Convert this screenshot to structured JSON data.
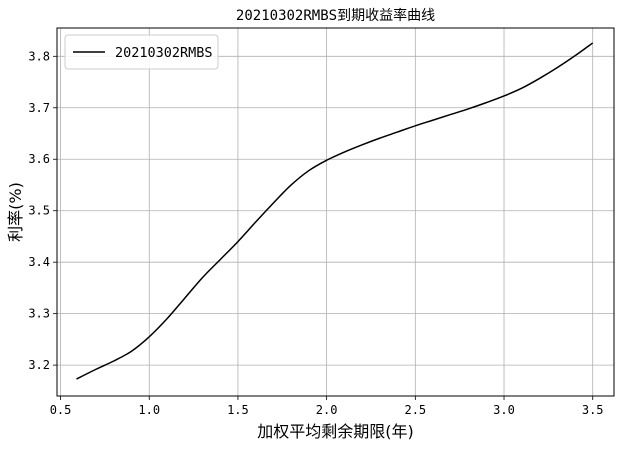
{
  "chart_data": {
    "type": "line",
    "title": "20210302RMBS到期收益率曲线",
    "xlabel": "加权平均剩余期限(年)",
    "ylabel": "利率(%)",
    "xlim": [
      0.48,
      3.62
    ],
    "ylim": [
      3.14,
      3.855
    ],
    "xticks": [
      0.5,
      1.0,
      1.5,
      2.0,
      2.5,
      3.0,
      3.5
    ],
    "xtick_labels": [
      "0.5",
      "1.0",
      "1.5",
      "2.0",
      "2.5",
      "3.0",
      "3.5"
    ],
    "yticks": [
      3.2,
      3.3,
      3.4,
      3.5,
      3.6,
      3.7,
      3.8
    ],
    "ytick_labels": [
      "3.2",
      "3.3",
      "3.4",
      "3.5",
      "3.6",
      "3.7",
      "3.8"
    ],
    "grid": true,
    "legend_position": "top-left",
    "series": [
      {
        "name": "20210302RMBS",
        "color": "#000000",
        "x": [
          0.59,
          0.7,
          0.8,
          0.9,
          1.0,
          1.1,
          1.2,
          1.3,
          1.4,
          1.5,
          1.6,
          1.7,
          1.8,
          1.9,
          2.0,
          2.1,
          2.2,
          2.3,
          2.4,
          2.5,
          2.6,
          2.7,
          2.8,
          2.9,
          3.0,
          3.1,
          3.2,
          3.3,
          3.4,
          3.5
        ],
        "y": [
          3.173,
          3.192,
          3.208,
          3.227,
          3.255,
          3.29,
          3.33,
          3.37,
          3.405,
          3.44,
          3.478,
          3.515,
          3.55,
          3.578,
          3.598,
          3.614,
          3.628,
          3.641,
          3.653,
          3.665,
          3.676,
          3.687,
          3.698,
          3.71,
          3.723,
          3.738,
          3.757,
          3.778,
          3.801,
          3.826
        ]
      }
    ]
  }
}
